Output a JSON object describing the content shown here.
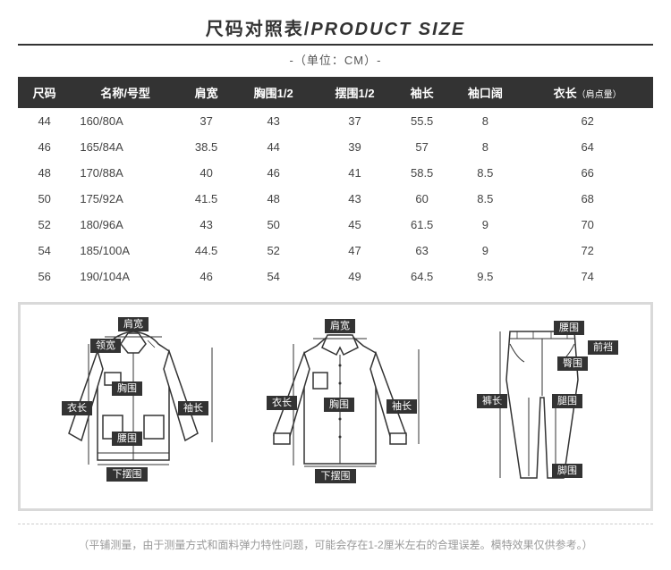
{
  "title": {
    "cn": "尺码对照表",
    "slash": "/",
    "en": "PRODUCT SIZE"
  },
  "subtitle": "-（单位：CM）-",
  "columns": [
    "尺码",
    "名称/号型",
    "肩宽",
    "胸围1/2",
    "摆围1/2",
    "袖长",
    "袖口阔",
    "衣长"
  ],
  "col_suffix_7": "（肩点量）",
  "rows": [
    [
      "44",
      "160/80A",
      "37",
      "43",
      "37",
      "55.5",
      "8",
      "62"
    ],
    [
      "46",
      "165/84A",
      "38.5",
      "44",
      "39",
      "57",
      "8",
      "64"
    ],
    [
      "48",
      "170/88A",
      "40",
      "46",
      "41",
      "58.5",
      "8.5",
      "66"
    ],
    [
      "50",
      "175/92A",
      "41.5",
      "48",
      "43",
      "60",
      "8.5",
      "68"
    ],
    [
      "52",
      "180/96A",
      "43",
      "50",
      "45",
      "61.5",
      "9",
      "70"
    ],
    [
      "54",
      "185/100A",
      "44.5",
      "52",
      "47",
      "63",
      "9",
      "72"
    ],
    [
      "56",
      "190/104A",
      "46",
      "54",
      "49",
      "64.5",
      "9.5",
      "74"
    ]
  ],
  "diagram_labels": {
    "jacket": {
      "shoulder": "肩宽",
      "collar": "领宽",
      "chest": "胸围",
      "length": "衣长",
      "sleeve": "袖长",
      "waist": "腰围",
      "hem": "下摆围"
    },
    "shirt": {
      "shoulder": "肩宽",
      "chest": "胸围",
      "length": "衣长",
      "sleeve": "袖长",
      "hem": "下摆围"
    },
    "pants": {
      "waist": "腰围",
      "hip": "臀围",
      "rise": "前裆",
      "length": "裤长",
      "thigh": "腿围",
      "hem": "脚围"
    }
  },
  "footnote": "（平铺测量，由于测量方式和面料弹力特性问题，可能会存在1-2厘米左右的合理误差。模特效果仅供参考。）",
  "style": {
    "header_bg": "#333333",
    "header_fg": "#ffffff",
    "border_color": "#d9d9d9",
    "footnote_color": "#999999"
  }
}
